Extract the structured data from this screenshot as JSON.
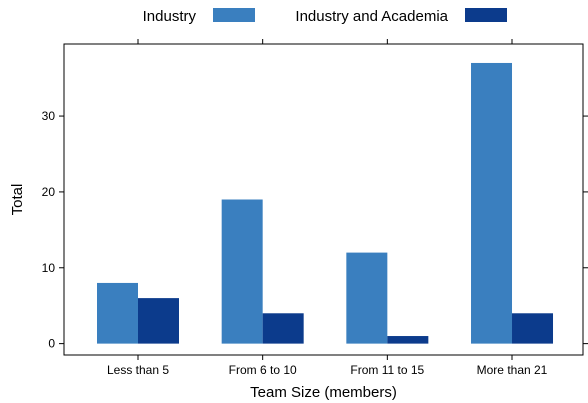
{
  "chart_data": {
    "type": "bar",
    "categories": [
      "Less than 5",
      "From 6 to 10",
      "From 11 to 15",
      "More than 21"
    ],
    "series": [
      {
        "name": "Industry",
        "color": "#3a7fbf",
        "values": [
          8,
          19,
          12,
          37
        ]
      },
      {
        "name": "Industry and Academia",
        "color": "#0c3b8c",
        "values": [
          6,
          4,
          1,
          4
        ]
      }
    ],
    "xlabel": "Team Size (members)",
    "ylabel": "Total",
    "yticks": [
      0,
      10,
      20,
      30
    ],
    "ylim": [
      -1.5,
      39.5
    ],
    "legend_position": "top",
    "grid": false
  }
}
